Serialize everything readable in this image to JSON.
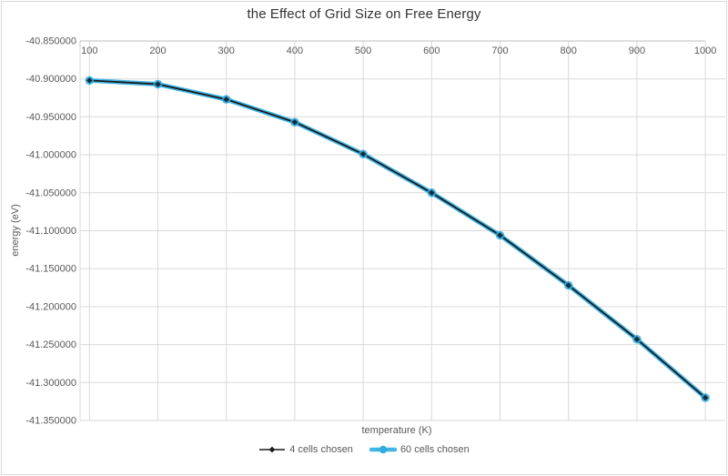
{
  "chart_title": "the Effect of Grid Size on Free Energy",
  "chart_data": {
    "type": "line",
    "title": "the Effect of Grid Size on Free Energy",
    "xlabel": "temperature (K)",
    "ylabel": "energy (eV)",
    "x": [
      100,
      200,
      300,
      400,
      500,
      600,
      700,
      800,
      900,
      1000
    ],
    "series": [
      {
        "name": "4 cells chosen",
        "marker": "diamond",
        "line_color": "#1a1a1a",
        "marker_color": "#10222e",
        "values": [
          -40.902,
          -40.907,
          -40.927,
          -40.957,
          -40.999,
          -41.05,
          -41.106,
          -41.172,
          -41.243,
          -41.32
        ]
      },
      {
        "name": "60 cells chosen",
        "marker": "circle",
        "line_color": "#41b5e5",
        "marker_color": "#32abde",
        "values": [
          -40.902,
          -40.907,
          -40.927,
          -40.957,
          -40.999,
          -41.05,
          -41.106,
          -41.172,
          -41.243,
          -41.32
        ]
      }
    ],
    "xlim": [
      86,
      1000
    ],
    "ylim": [
      -41.35,
      -40.85
    ],
    "x_ticks": [
      100,
      200,
      300,
      400,
      500,
      600,
      700,
      800,
      900,
      1000
    ],
    "y_ticks": [
      "-40.850000",
      "-40.900000",
      "-40.950000",
      "-41.000000",
      "-41.050000",
      "-41.100000",
      "-41.150000",
      "-41.200000",
      "-41.250000",
      "-41.300000",
      "-41.350000"
    ],
    "y_tick_step": 0.05,
    "grid": true,
    "legend_position": "bottom"
  },
  "colors": {
    "background": "#ffffff",
    "chart_border": "#d9d9d9",
    "gridline": "#d9d9d9",
    "axis_line": "#bfbfbf",
    "tick_label": "#595959",
    "title_text": "#333333",
    "axis_title_text": "#595959"
  }
}
